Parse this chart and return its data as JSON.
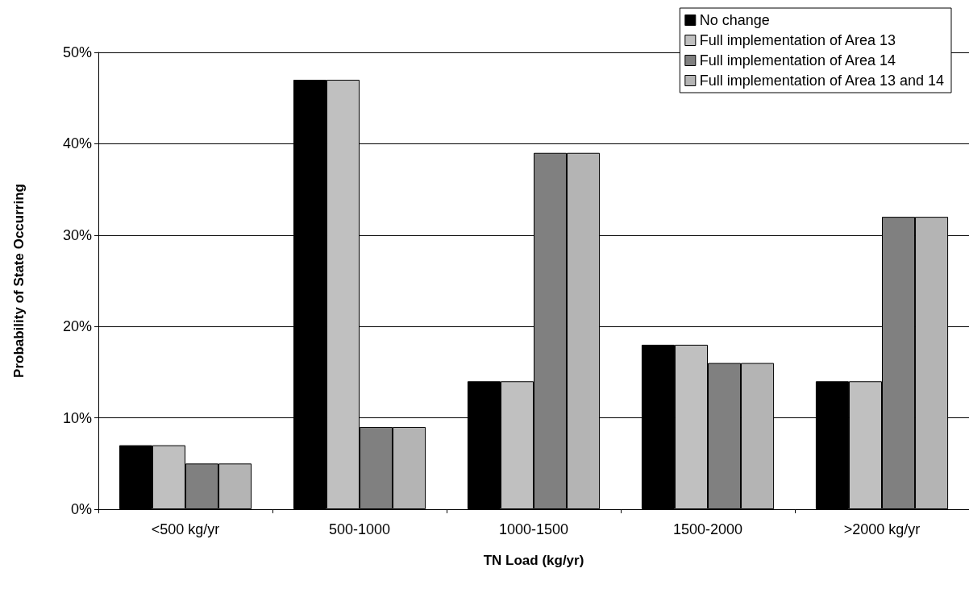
{
  "chart_data": {
    "type": "bar",
    "xlabel": "TN Load (kg/yr)",
    "ylabel": "Probability of State Occurring",
    "categories": [
      "<500 kg/yr",
      "500-1000",
      "1000-1500",
      "1500-2000",
      ">2000 kg/yr"
    ],
    "series": [
      {
        "name": "No change",
        "color": "#000000",
        "values": [
          7,
          47,
          14,
          18,
          14
        ]
      },
      {
        "name": "Full implementation of Area 13",
        "color": "#c0c0c0",
        "values": [
          7,
          47,
          14,
          18,
          14
        ]
      },
      {
        "name": "Full implementation of Area 14",
        "color": "#808080",
        "values": [
          5,
          9,
          39,
          16,
          32
        ]
      },
      {
        "name": "Full implementation of Area 13 and 14",
        "color": "#b4b4b4",
        "values": [
          5,
          9,
          39,
          16,
          32
        ]
      }
    ],
    "ylim": [
      0,
      50
    ],
    "yticks": [
      {
        "value": 0,
        "label": "0%"
      },
      {
        "value": 10,
        "label": "10%"
      },
      {
        "value": 20,
        "label": "20%"
      },
      {
        "value": 30,
        "label": "30%"
      },
      {
        "value": 40,
        "label": "40%"
      },
      {
        "value": 50,
        "label": "50%"
      }
    ],
    "grid": "y",
    "legend": "top right"
  }
}
